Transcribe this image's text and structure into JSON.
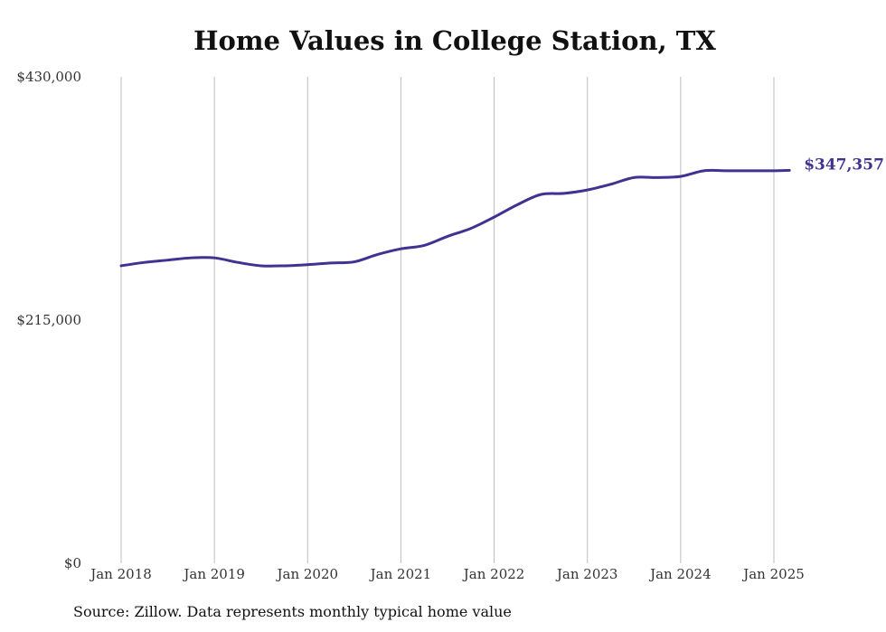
{
  "chart_data": {
    "type": "line",
    "title": "Home Values in College Station, TX",
    "xlabel": "",
    "ylabel": "",
    "x_ticks": [
      "Jan 2018",
      "Jan 2019",
      "Jan 2020",
      "Jan 2021",
      "Jan 2022",
      "Jan 2023",
      "Jan 2024",
      "Jan 2025"
    ],
    "y_ticks": [
      "$0",
      "$215,000",
      "$430,000"
    ],
    "y_tick_values": [
      0,
      215000,
      430000
    ],
    "ylim": [
      0,
      430000
    ],
    "xlim": [
      "2018-01",
      "2025-03"
    ],
    "grid": "vertical lines at each January",
    "legend": "none",
    "line_color": "#3f3291",
    "series": [
      {
        "x": [
          "2018-01",
          "2018-04",
          "2018-07",
          "2018-10",
          "2019-01",
          "2019-04",
          "2019-07",
          "2019-10",
          "2020-01",
          "2020-04",
          "2020-07",
          "2020-10",
          "2021-01",
          "2021-04",
          "2021-07",
          "2021-10",
          "2022-01",
          "2022-04",
          "2022-07",
          "2022-10",
          "2023-01",
          "2023-04",
          "2023-07",
          "2023-10",
          "2024-01",
          "2024-04",
          "2024-07",
          "2024-10",
          "2025-01",
          "2025-03"
        ],
        "y": [
          263000,
          266000,
          268000,
          270000,
          270000,
          266000,
          263000,
          263000,
          264000,
          265500,
          266500,
          273000,
          278000,
          281000,
          289000,
          296000,
          306000,
          317000,
          326000,
          327000,
          330000,
          335000,
          341000,
          341000,
          342000,
          347000,
          347000,
          347000,
          347000,
          347357
        ]
      }
    ],
    "annotations": [
      {
        "text": "$347,357",
        "at": "last point"
      }
    ]
  },
  "source": "Source: Zillow. Data represents monthly typical home value"
}
